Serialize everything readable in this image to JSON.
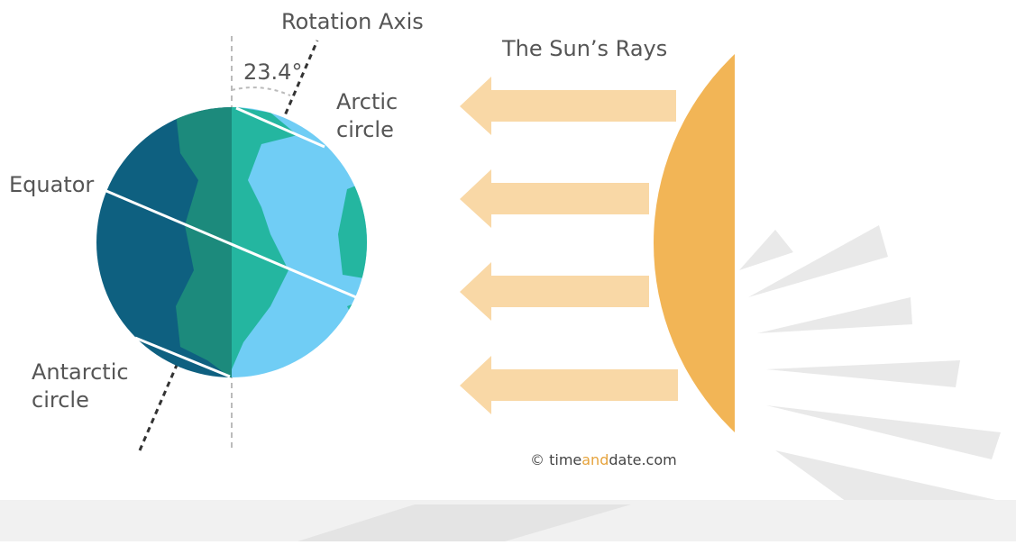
{
  "labels": {
    "rotation_axis": "Rotation Axis",
    "tilt_angle": "23.4°",
    "arctic_circle": [
      "Arctic",
      "circle"
    ],
    "sun_rays": "The Sun’s Rays",
    "equator": "Equator",
    "antarctic_circle": [
      "Antarctic",
      "circle"
    ],
    "credit": {
      "symbol": "©",
      "part1": "time",
      "part2": "and",
      "part3": "date.com"
    }
  }
}
